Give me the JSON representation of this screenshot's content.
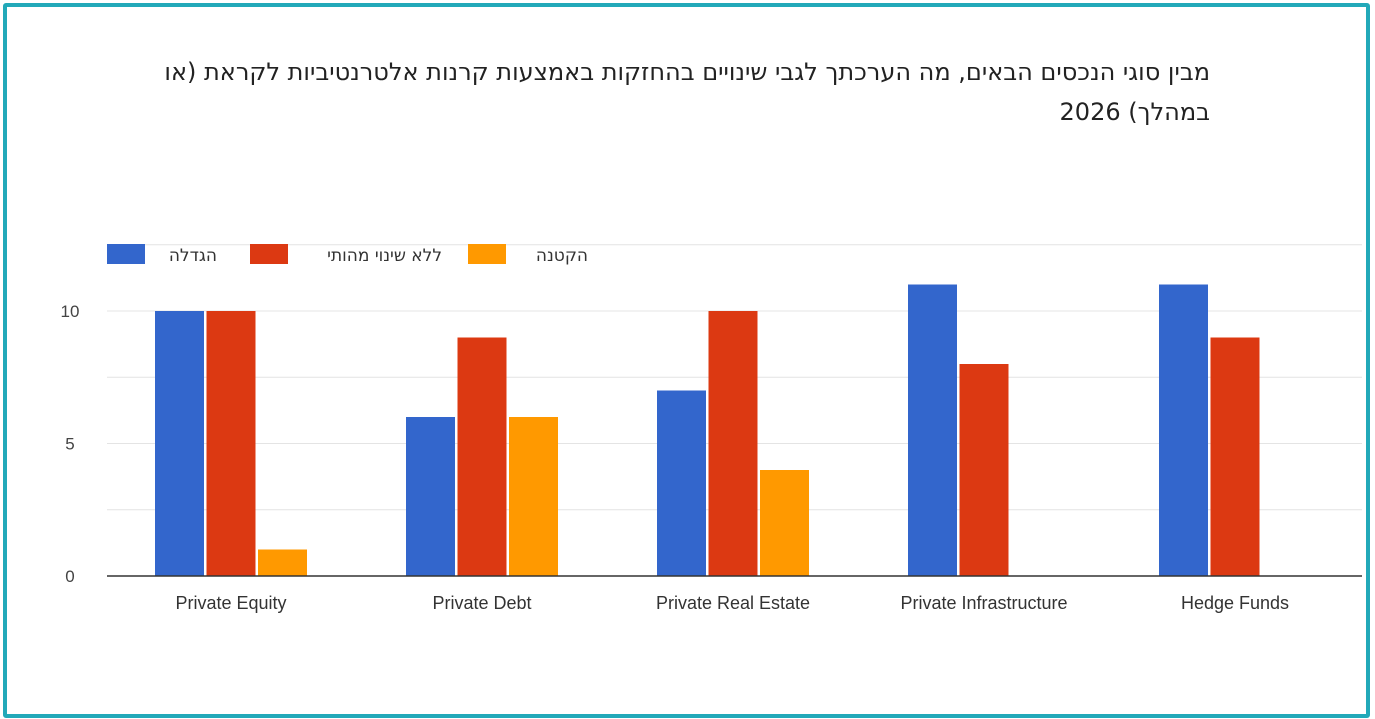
{
  "chart_data": {
    "type": "bar",
    "title_line1": "מבין סוגי הנכסים הבאים, מה הערכתך לגבי שינויים בהחזקות באמצעות קרנות אלטרנטיביות לקראת (או",
    "title_line2": "במהלך) 2026",
    "categories": [
      "Private Equity",
      "Private Debt",
      "Private Real Estate",
      "Private Infrastructure",
      "Hedge Funds"
    ],
    "series": [
      {
        "name": "הגדלה",
        "color": "#3366cc",
        "values": [
          10,
          6,
          7,
          11,
          11
        ]
      },
      {
        "name": "ללא שינוי מהותי",
        "color": "#dc3912",
        "values": [
          10,
          9,
          10,
          8,
          9
        ]
      },
      {
        "name": "הקטנה",
        "color": "#ff9900",
        "values": [
          1,
          6,
          4,
          0,
          0
        ]
      }
    ],
    "yticks": [
      "0",
      "5",
      "10"
    ],
    "ylim": [
      0,
      12.5
    ],
    "gridlines": [
      0,
      2.5,
      5,
      7.5,
      10,
      12.5
    ],
    "legend_position": "top-left",
    "xlabel": "",
    "ylabel": ""
  }
}
